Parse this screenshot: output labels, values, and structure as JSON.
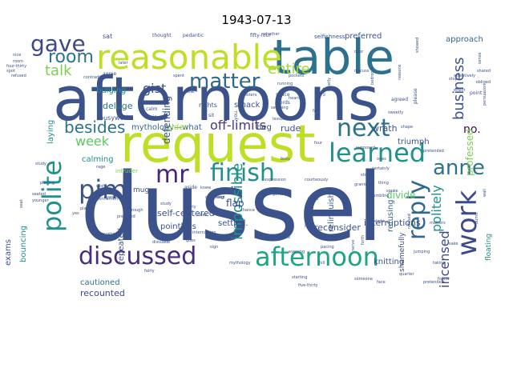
{
  "title": "1943-07-13",
  "words": [
    {
      "text": "dussel",
      "color": "#3b528b"
    },
    {
      "text": "afternoons",
      "color": "#3b528b"
    },
    {
      "text": "request",
      "color": "#bddf26"
    },
    {
      "text": "table",
      "color": "#2c728e"
    },
    {
      "text": "reasonable",
      "color": "#bddf26"
    },
    {
      "text": "learned",
      "color": "#21918c"
    },
    {
      "text": "afternoon",
      "color": "#20a486"
    },
    {
      "text": "discussed",
      "color": "#472d7b"
    },
    {
      "text": "finish",
      "color": "#21918c"
    },
    {
      "text": "next",
      "color": "#2c728e"
    },
    {
      "text": "pim",
      "color": "#3b528b"
    },
    {
      "text": "polite",
      "color": "#21918c"
    },
    {
      "text": "work",
      "color": "#3e4989"
    },
    {
      "text": "reply",
      "color": "#31688e"
    },
    {
      "text": "gave",
      "color": "#3e4989"
    },
    {
      "text": "mr",
      "color": "#482677"
    },
    {
      "text": "anne",
      "color": "#2c728e"
    },
    {
      "text": "matter",
      "color": "#31688e"
    },
    {
      "text": "room",
      "color": "#2c728e"
    },
    {
      "text": "besides",
      "color": "#2c728e"
    },
    {
      "text": "talk",
      "color": "#7ad151"
    },
    {
      "text": "entire",
      "color": "#a0da39"
    },
    {
      "text": "business",
      "color": "#3b528b"
    },
    {
      "text": "week",
      "color": "#5ec962"
    },
    {
      "text": "impossible",
      "color": "#21918c"
    },
    {
      "text": "off-limits",
      "color": "#443983"
    },
    {
      "text": "incensed",
      "color": "#3e4989"
    },
    {
      "text": "politely",
      "color": "#21918c"
    },
    {
      "text": "gist",
      "color": "#3b528b"
    },
    {
      "text": "no.",
      "color": "#440154"
    },
    {
      "text": "professed",
      "color": "#7ad151"
    },
    {
      "text": "reconsider",
      "color": "#3b528b"
    },
    {
      "text": "interruptions",
      "color": "#3b528b"
    },
    {
      "text": "recounted",
      "color": "#3e4989"
    },
    {
      "text": "cautioned",
      "color": "#2c728e"
    },
    {
      "text": "knitting",
      "color": "#3b528b"
    },
    {
      "text": "wrath",
      "color": "#3b528b"
    },
    {
      "text": "triumph",
      "color": "#3b528b"
    },
    {
      "text": "divide",
      "color": "#5ec962"
    },
    {
      "text": "flap",
      "color": "#3e4989"
    },
    {
      "text": "calming",
      "color": "#21918c"
    },
    {
      "text": "deluge",
      "color": "#2c728e"
    },
    {
      "text": "bulging",
      "color": "#21918c"
    },
    {
      "text": "mythology—what",
      "color": "#31688e"
    },
    {
      "text": "elder",
      "color": "#a0da39"
    },
    {
      "text": "rude",
      "color": "#3b528b"
    },
    {
      "text": "beg",
      "color": "#3b528b"
    },
    {
      "text": "smack",
      "color": "#3b528b"
    },
    {
      "text": "preferred",
      "color": "#3b528b"
    },
    {
      "text": "approach",
      "color": "#31688e"
    },
    {
      "text": "laying",
      "color": "#21918c"
    },
    {
      "text": "defending",
      "color": "#3b528b"
    },
    {
      "text": "busywork",
      "color": "#3b528b"
    },
    {
      "text": "self-centered",
      "color": "#3b528b"
    },
    {
      "text": "pointless",
      "color": "#3b528b"
    },
    {
      "text": "settled.",
      "color": "#3b528b"
    },
    {
      "text": "repeated",
      "color": "#3b528b"
    },
    {
      "text": "relinquish",
      "color": "#3b528b"
    },
    {
      "text": "refusing",
      "color": "#31688e"
    },
    {
      "text": "shamefully",
      "color": "#3b528b"
    },
    {
      "text": "floating",
      "color": "#21918c"
    },
    {
      "text": "exams",
      "color": "#3b528b"
    },
    {
      "text": "bouncing",
      "color": "#21918c"
    },
    {
      "text": "intruder",
      "color": "#7ad151"
    },
    {
      "text": "mug",
      "color": "#3b528b"
    },
    {
      "text": "sat",
      "color": "#3b528b"
    },
    {
      "text": "selfishness",
      "color": "#3b528b"
    },
    {
      "text": "fifty-four",
      "color": "#3b528b"
    },
    {
      "text": "agree",
      "color": "#3b528b"
    },
    {
      "text": "rights",
      "color": "#3b528b"
    },
    {
      "text": "you.",
      "color": "#3b528b"
    },
    {
      "text": "calm",
      "color": "#3b528b"
    },
    {
      "text": "chair",
      "color": "#3b528b"
    },
    {
      "text": "sit",
      "color": "#3b528b"
    },
    {
      "text": "deal",
      "color": "#3b528b"
    },
    {
      "text": "words",
      "color": "#3b528b"
    },
    {
      "text": "space",
      "color": "#3b528b"
    },
    {
      "text": "agreed",
      "color": "#3b528b"
    },
    {
      "text": "point",
      "color": "#3b528b"
    },
    {
      "text": "please",
      "color": "#3b528b"
    },
    {
      "text": "aside",
      "color": "#3b528b"
    },
    {
      "text": "nice",
      "color": "#3b528b"
    },
    {
      "text": "room",
      "color": "#3b528b"
    },
    {
      "text": "four-thirty",
      "color": "#3b528b"
    },
    {
      "text": "later",
      "color": "#3b528b"
    },
    {
      "text": "whether",
      "color": "#3b528b"
    },
    {
      "text": "thought",
      "color": "#3b528b"
    },
    {
      "text": "pedantic",
      "color": "#3b528b"
    },
    {
      "text": "contradict",
      "color": "#3b528b"
    },
    {
      "text": "study",
      "color": "#3b528b"
    },
    {
      "text": "rage",
      "color": "#3b528b"
    },
    {
      "text": "knew",
      "color": "#3b528b"
    },
    {
      "text": "charming",
      "color": "#3b528b"
    },
    {
      "text": "interruption",
      "color": "#3b528b"
    },
    {
      "text": "sign",
      "color": "#3b528b"
    },
    {
      "text": "appreciate",
      "color": "#3b528b"
    },
    {
      "text": "mythology",
      "color": "#3b528b"
    },
    {
      "text": "starting",
      "color": "#3b528b"
    },
    {
      "text": "quarter",
      "color": "#3b528b"
    },
    {
      "text": "pretended",
      "color": "#3b528b"
    },
    {
      "text": "younger",
      "color": "#3b528b"
    },
    {
      "text": "plain",
      "color": "#3b528b"
    },
    {
      "text": "anywhere",
      "color": "#3b528b"
    },
    {
      "text": "fifty",
      "color": "#3b528b"
    },
    {
      "text": "five-thirty",
      "color": "#3b528b"
    },
    {
      "text": "follow",
      "color": "#3b528b"
    },
    {
      "text": "sunlight",
      "color": "#3b528b"
    },
    {
      "text": "rough",
      "color": "#3b528b"
    },
    {
      "text": "fairly",
      "color": "#3b528b"
    },
    {
      "text": "prepared",
      "color": "#3b528b"
    },
    {
      "text": "failed",
      "color": "#3b528b"
    },
    {
      "text": "pockets",
      "color": "#3b528b"
    },
    {
      "text": "running",
      "color": "#3b528b"
    },
    {
      "text": "showed",
      "color": "#3b528b"
    },
    {
      "text": "sense",
      "color": "#3b528b"
    },
    {
      "text": "attentively",
      "color": "#3b528b"
    },
    {
      "text": "discuss",
      "color": "#3b528b"
    },
    {
      "text": "persuasion",
      "color": "#3b528b"
    },
    {
      "text": "forth",
      "color": "#3b528b"
    },
    {
      "text": "nerve",
      "color": "#3b528b"
    },
    {
      "text": "lies",
      "color": "#3b528b"
    },
    {
      "text": "hill",
      "color": "#3b528b"
    },
    {
      "text": "matters",
      "color": "#3b528b"
    },
    {
      "text": "wall",
      "color": "#3b528b"
    },
    {
      "text": "grumbling",
      "color": "#3b528b"
    },
    {
      "text": "four",
      "color": "#3b528b"
    },
    {
      "text": "refused",
      "color": "#3b528b"
    },
    {
      "text": "spoke",
      "color": "#3b528b"
    },
    {
      "text": "thing",
      "color": "#3b528b"
    },
    {
      "text": "shut",
      "color": "#3b528b"
    },
    {
      "text": "quietly",
      "color": "#3b528b"
    },
    {
      "text": "door",
      "color": "#3b528b"
    },
    {
      "text": "effect",
      "color": "#3b528b"
    },
    {
      "text": "reasons",
      "color": "#3b528b"
    },
    {
      "text": "bedroom",
      "color": "#3b528b"
    },
    {
      "text": "obliged",
      "color": "#3b528b"
    },
    {
      "text": "supposed",
      "color": "#3b528b"
    },
    {
      "text": "dumb",
      "color": "#3b528b"
    },
    {
      "text": "certainly",
      "color": "#3b528b"
    },
    {
      "text": "kept",
      "color": "#3b528b"
    },
    {
      "text": "sweetly",
      "color": "#3b528b"
    },
    {
      "text": "placing",
      "color": "#3b528b"
    },
    {
      "text": "heard",
      "color": "#3b528b"
    },
    {
      "text": "stop",
      "color": "#3b528b"
    },
    {
      "text": "seated",
      "color": "#3b528b"
    },
    {
      "text": "gentlemen",
      "color": "#3b528b"
    },
    {
      "text": "rules",
      "color": "#3b528b"
    },
    {
      "text": "spent",
      "color": "#3b528b"
    },
    {
      "text": "seething",
      "color": "#3b528b"
    },
    {
      "text": "granted",
      "color": "#3b528b"
    },
    {
      "text": "courteously",
      "color": "#3b528b"
    },
    {
      "text": "expression",
      "color": "#3b528b"
    },
    {
      "text": "dissuade",
      "color": "#3b528b"
    },
    {
      "text": "refused",
      "color": "#3b528b"
    },
    {
      "text": "spot",
      "color": "#3b528b"
    },
    {
      "text": "seat",
      "color": "#3b528b"
    },
    {
      "text": "wish",
      "color": "#3b528b"
    },
    {
      "text": "yes",
      "color": "#3b528b"
    },
    {
      "text": "evening",
      "color": "#3b528b"
    },
    {
      "text": "shared",
      "color": "#3b528b"
    },
    {
      "text": "lessons",
      "color": "#3b528b"
    },
    {
      "text": "fairly",
      "color": "#3b528b"
    },
    {
      "text": "eyes",
      "color": "#3b528b"
    },
    {
      "text": "busy",
      "color": "#3b528b"
    },
    {
      "text": "sisters",
      "color": "#3b528b"
    },
    {
      "text": "stood",
      "color": "#3b528b"
    },
    {
      "text": "fact",
      "color": "#3b528b"
    },
    {
      "text": "gotten",
      "color": "#3b528b"
    },
    {
      "text": "pretended",
      "color": "#3b528b"
    },
    {
      "text": "ones",
      "color": "#3b528b"
    },
    {
      "text": "twice",
      "color": "#3b528b"
    },
    {
      "text": "chance",
      "color": "#3b528b"
    },
    {
      "text": "study",
      "color": "#3b528b"
    },
    {
      "text": "talking",
      "color": "#3b528b"
    },
    {
      "text": "hear",
      "color": "#3b528b"
    },
    {
      "text": "goes",
      "color": "#3b528b"
    },
    {
      "text": "sake",
      "color": "#3b528b"
    },
    {
      "text": "pacing",
      "color": "#3b528b"
    },
    {
      "text": "jumping",
      "color": "#3b528b"
    },
    {
      "text": "someone",
      "color": "#3b528b"
    },
    {
      "text": "face",
      "color": "#3b528b"
    },
    {
      "text": "taking",
      "color": "#3b528b"
    },
    {
      "text": "shape",
      "color": "#3b528b"
    },
    {
      "text": "bed",
      "color": "#3b528b"
    },
    {
      "text": "small",
      "color": "#3b528b"
    },
    {
      "text": "this",
      "color": "#3b528b"
    },
    {
      "text": "sit",
      "color": "#3b528b"
    },
    {
      "text": "wait",
      "color": "#3b528b"
    },
    {
      "text": "side",
      "color": "#3b528b"
    },
    {
      "text": "say",
      "color": "#3b528b"
    },
    {
      "text": "stubborn",
      "color": "#3b528b"
    },
    {
      "text": "eight",
      "color": "#3b528b"
    }
  ]
}
